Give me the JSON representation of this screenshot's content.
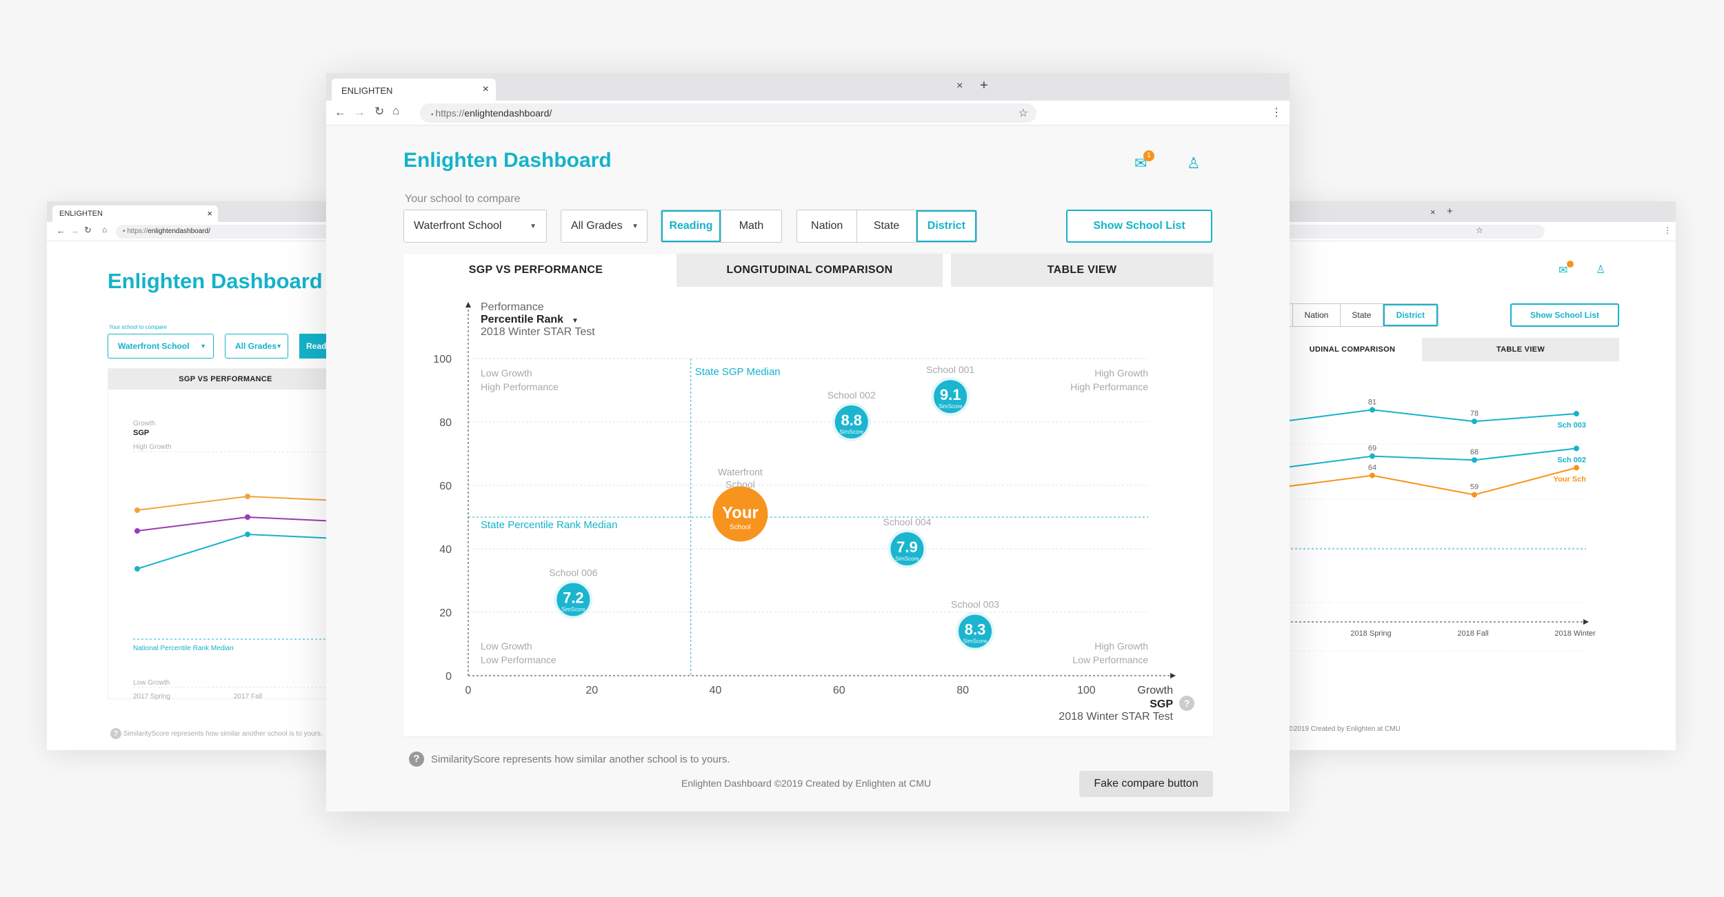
{
  "browser": {
    "tab_title": "ENLIGHTEN",
    "url_prefix": "https://",
    "url_host": "enlightendashboard/",
    "url_host_short": "enlightendashboard/"
  },
  "app": {
    "title": "Enlighten Dashboard",
    "notification_count": "1",
    "compare_label": "Your school to compare",
    "school_select": "Waterfront School",
    "grade_select": "All Grades",
    "subject_tabs": [
      "Reading",
      "Math"
    ],
    "subject_active": "Reading",
    "scope_tabs": [
      "Nation",
      "State",
      "District"
    ],
    "scope_active": "District",
    "show_school_list": "Show School List",
    "view_tabs": [
      "SGP VS PERFORMANCE",
      "LONGITUDINAL COMPARISON",
      "TABLE VIEW"
    ],
    "view_active": "SGP VS PERFORMANCE",
    "footnote": "SimilarityScore represents how similar another school is to yours.",
    "footer": "Enlighten Dashboard ©2019 Created by Enlighten at CMU",
    "fake_button": "Fake compare button",
    "colors": {
      "accent": "#14b3c9",
      "your_school": "#f7941d",
      "bubble": "#1bb5cf"
    }
  },
  "chart_data": [
    {
      "type": "scatter",
      "title": "",
      "y_header": "Performance",
      "ylabel": "Percentile Rank",
      "y_sub": "2018 Winter STAR Test",
      "x_header": "Growth",
      "xlabel": "SGP",
      "x_sub": "2018 Winter STAR Test",
      "xlim": [
        0,
        110
      ],
      "ylim": [
        0,
        100
      ],
      "x_ticks": [
        0,
        20,
        40,
        60,
        80,
        100
      ],
      "y_ticks": [
        0,
        20,
        40,
        60,
        80,
        100
      ],
      "x_median_label": "State SGP Median",
      "x_median": 36,
      "y_median_label": "State Percentile Rank Median",
      "y_median": 50,
      "quadrants": {
        "top_left": [
          "Low Growth",
          "High Performance"
        ],
        "top_right": [
          "High Growth",
          "High Performance"
        ],
        "bottom_left": [
          "Low Growth",
          "Low Performance"
        ],
        "bottom_right": [
          "High Growth",
          "Low Performance"
        ]
      },
      "score_label": "SimScore",
      "points": [
        {
          "name": "School 001",
          "x": 78,
          "y": 88,
          "score": "9.1"
        },
        {
          "name": "School 002",
          "x": 62,
          "y": 80,
          "score": "8.8"
        },
        {
          "name": "School 004",
          "x": 71,
          "y": 40,
          "score": "7.9"
        },
        {
          "name": "School 006",
          "x": 17,
          "y": 24,
          "score": "7.2"
        },
        {
          "name": "School 003",
          "x": 82,
          "y": 14,
          "score": "8.3"
        }
      ],
      "your_school": {
        "name_line1": "Waterfront",
        "name_line2": "School",
        "label": "Your",
        "sub": "School",
        "x": 44,
        "y": 51
      }
    },
    {
      "type": "line",
      "title": "",
      "ylabel": "SGP",
      "y_header": "Growth",
      "top_label": "High Growth",
      "bottom_label": "Low Growth",
      "median_label": "National Percentile Rank Median",
      "categories": [
        "2017 Spring",
        "2017 Fall"
      ],
      "ylim": [
        0,
        100
      ],
      "series": [
        {
          "color": "#f2a33a",
          "values": [
            62,
            70
          ]
        },
        {
          "color": "#9b3bb5",
          "values": [
            50,
            58
          ]
        },
        {
          "color": "#14b3c9",
          "values": [
            28,
            48
          ]
        }
      ]
    },
    {
      "type": "line",
      "title": "",
      "categories": [
        "2018 Spring",
        "2018 Fall",
        "2018 Winter"
      ],
      "ylim": [
        0,
        100
      ],
      "series": [
        {
          "name": "Sch 003",
          "color": "#14b3c9",
          "values": [
            81,
            78,
            80
          ],
          "labels": [
            "81",
            "78",
            ""
          ]
        },
        {
          "name": "Sch 002",
          "color": "#14b3c9",
          "values": [
            69,
            68,
            71
          ],
          "labels": [
            "69",
            "68",
            ""
          ]
        },
        {
          "name": "Your Sch",
          "color": "#f7941d",
          "values": [
            64,
            59,
            66
          ],
          "labels": [
            "64",
            "59",
            ""
          ]
        }
      ]
    }
  ],
  "left_window": {
    "tab_title": "ENLIGHTEN",
    "title": "Enlighten Dashboard",
    "compare_label": "Your school to compare",
    "school_select": "Waterfront School",
    "grade_select": "All Grades",
    "reading": "Read",
    "view_tab": "SGP VS PERFORMANCE",
    "footnote": "SimilarityScore represents how similar another school is to yours."
  },
  "right_window": {
    "scope_tabs": [
      "Nation",
      "State",
      "District"
    ],
    "show_school_list": "Show School List",
    "view_tabs": [
      "UDINAL COMPARISON",
      "TABLE VIEW"
    ],
    "footer": "d ©2019 Created by Enlighten at CMU"
  }
}
